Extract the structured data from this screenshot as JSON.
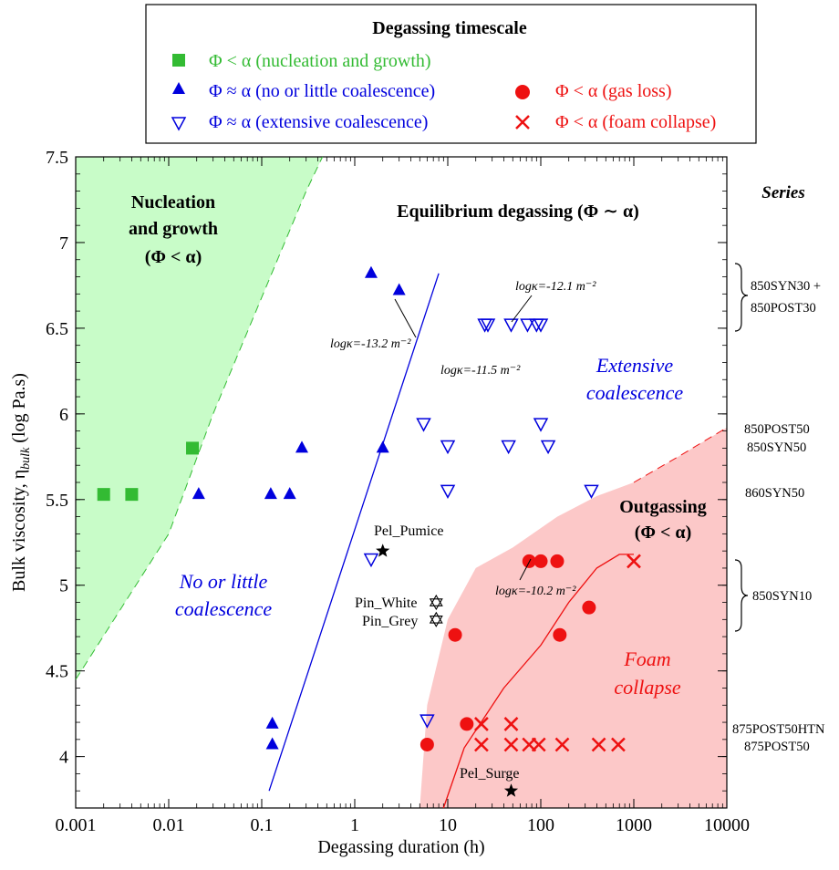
{
  "chart_data": {
    "type": "scatter",
    "title": "",
    "xlabel": "Degassing duration (h)",
    "ylabel_main": "Bulk viscosity, η",
    "ylabel_sub": "bulk",
    "ylabel_unit": " (log Pa.s)",
    "x_scale": "log",
    "xlim": [
      0.001,
      10000
    ],
    "ylim": [
      3.7,
      7.5
    ],
    "x_ticks": [
      "0.001",
      "0.01",
      "0.1",
      "1",
      "10",
      "100",
      "1000",
      "10000"
    ],
    "y_ticks": [
      "4",
      "4.5",
      "5",
      "5.5",
      "6",
      "6.5",
      "7",
      "7.5"
    ],
    "legend": {
      "title": "Degassing timescale",
      "entries": [
        {
          "marker": "square",
          "color": "#33bb33",
          "label": "Φ < α (nucleation and growth)"
        },
        {
          "marker": "triangle",
          "color": "#0000dd",
          "label": "Φ ≈ α (no or little coalescence)"
        },
        {
          "marker": "triangle-open",
          "color": "#0000dd",
          "label": "Φ ≈ α (extensive coalescence)"
        },
        {
          "marker": "circle",
          "color": "#ee1111",
          "label": "Φ < α (gas loss)"
        },
        {
          "marker": "cross",
          "color": "#ee1111",
          "label": "Φ < α (foam collapse)"
        }
      ]
    },
    "series": [
      {
        "marker": "square",
        "color": "#33bb33",
        "x": [
          0.002,
          0.004,
          0.018
        ],
        "y": [
          5.53,
          5.53,
          5.8
        ]
      },
      {
        "marker": "triangle",
        "color": "#0000dd",
        "x": [
          0.021,
          0.125,
          0.2,
          0.27,
          1.5,
          2.0,
          3.0,
          0.13,
          0.13
        ],
        "y": [
          5.53,
          5.53,
          5.53,
          5.8,
          6.82,
          5.8,
          6.72,
          4.19,
          4.07
        ]
      },
      {
        "marker": "triangle-open",
        "color": "#0000dd",
        "x": [
          5.5,
          10,
          10,
          45,
          100,
          120,
          350,
          25,
          27,
          48,
          72,
          90,
          100,
          1.5,
          6
        ],
        "y": [
          5.94,
          5.81,
          5.55,
          5.81,
          5.94,
          5.81,
          5.55,
          6.52,
          6.52,
          6.52,
          6.52,
          6.52,
          6.52,
          5.15,
          4.21
        ]
      },
      {
        "marker": "circle",
        "color": "#ee1111",
        "x": [
          75,
          100,
          150,
          330,
          12,
          160,
          6,
          16
        ],
        "y": [
          5.14,
          5.14,
          5.14,
          4.87,
          4.71,
          4.71,
          4.07,
          4.19
        ]
      },
      {
        "marker": "cross",
        "color": "#ee1111",
        "x": [
          1000,
          23,
          48,
          23,
          48,
          75,
          95,
          170,
          420,
          680
        ],
        "y": [
          5.14,
          4.19,
          4.19,
          4.07,
          4.07,
          4.07,
          4.07,
          4.07,
          4.07,
          4.07
        ]
      }
    ],
    "reference_points": [
      {
        "label": "Pel_Pumice",
        "marker": "star-filled",
        "x": 2,
        "y": 5.2
      },
      {
        "label": "Pin_White",
        "marker": "star-open",
        "x": 7.5,
        "y": 4.9
      },
      {
        "label": "Pin_Grey",
        "marker": "star-open",
        "x": 7.5,
        "y": 4.8
      },
      {
        "label": "Pel_Surge",
        "marker": "star-filled",
        "x": 48,
        "y": 3.8
      }
    ],
    "boundaries": [
      {
        "name": "nucleation-boundary",
        "color": "#33bb33",
        "points": [
          [
            0.001,
            4.45
          ],
          [
            0.01,
            5.3
          ],
          [
            0.03,
            6.0
          ],
          [
            0.1,
            6.68
          ],
          [
            0.3,
            7.3
          ],
          [
            0.45,
            7.5
          ]
        ]
      },
      {
        "name": "coalescence-line",
        "color": "#0000dd",
        "points": [
          [
            0.12,
            3.8
          ],
          [
            8,
            6.82
          ]
        ]
      },
      {
        "name": "outgassing-boundary",
        "color": "#ee1111",
        "points": [
          [
            5,
            3.7
          ],
          [
            6,
            4.3
          ],
          [
            10,
            4.8
          ],
          [
            20,
            5.1
          ],
          [
            50,
            5.22
          ],
          [
            150,
            5.4
          ],
          [
            400,
            5.52
          ],
          [
            1000,
            5.6
          ],
          [
            3000,
            5.75
          ],
          [
            10000,
            5.92
          ]
        ]
      },
      {
        "name": "foam-collapse-curve",
        "color": "#ee1111",
        "points": [
          [
            9,
            3.7
          ],
          [
            15,
            4.05
          ],
          [
            40,
            4.4
          ],
          [
            100,
            4.65
          ],
          [
            200,
            4.9
          ],
          [
            400,
            5.1
          ],
          [
            700,
            5.18
          ],
          [
            1000,
            5.18
          ]
        ]
      }
    ],
    "region_labels": {
      "nucleation_1": "Nucleation",
      "nucleation_2": "and growth",
      "nucleation_3": "(Φ < α)",
      "equilibrium": "Equilibrium degassing (Φ ∼ α)",
      "extensive_1": "Extensive",
      "extensive_2": "coalescence",
      "no_little_1": "No or little",
      "no_little_2": "coalescence",
      "outgassing_1": "Outgassing",
      "outgassing_2": "(Φ < α)",
      "foam_1": "Foam",
      "foam_2": "collapse"
    },
    "annotations": {
      "logk_132": "logκ=-13.2 m⁻²",
      "logk_121": "logκ=-12.1 m⁻²",
      "logk_115": "logκ=-11.5 m⁻²",
      "logk_102": "logκ=-10.2 m⁻²"
    },
    "series_column": {
      "header": "Series",
      "group1_a": "850SYN30 +",
      "group1_b": "850POST30",
      "group2_a": "850POST50",
      "group2_b": "850SYN50",
      "group3": "860SYN50",
      "group4": "850SYN10",
      "group5_a": "875POST50HTN",
      "group5_b": "875POST50"
    }
  }
}
